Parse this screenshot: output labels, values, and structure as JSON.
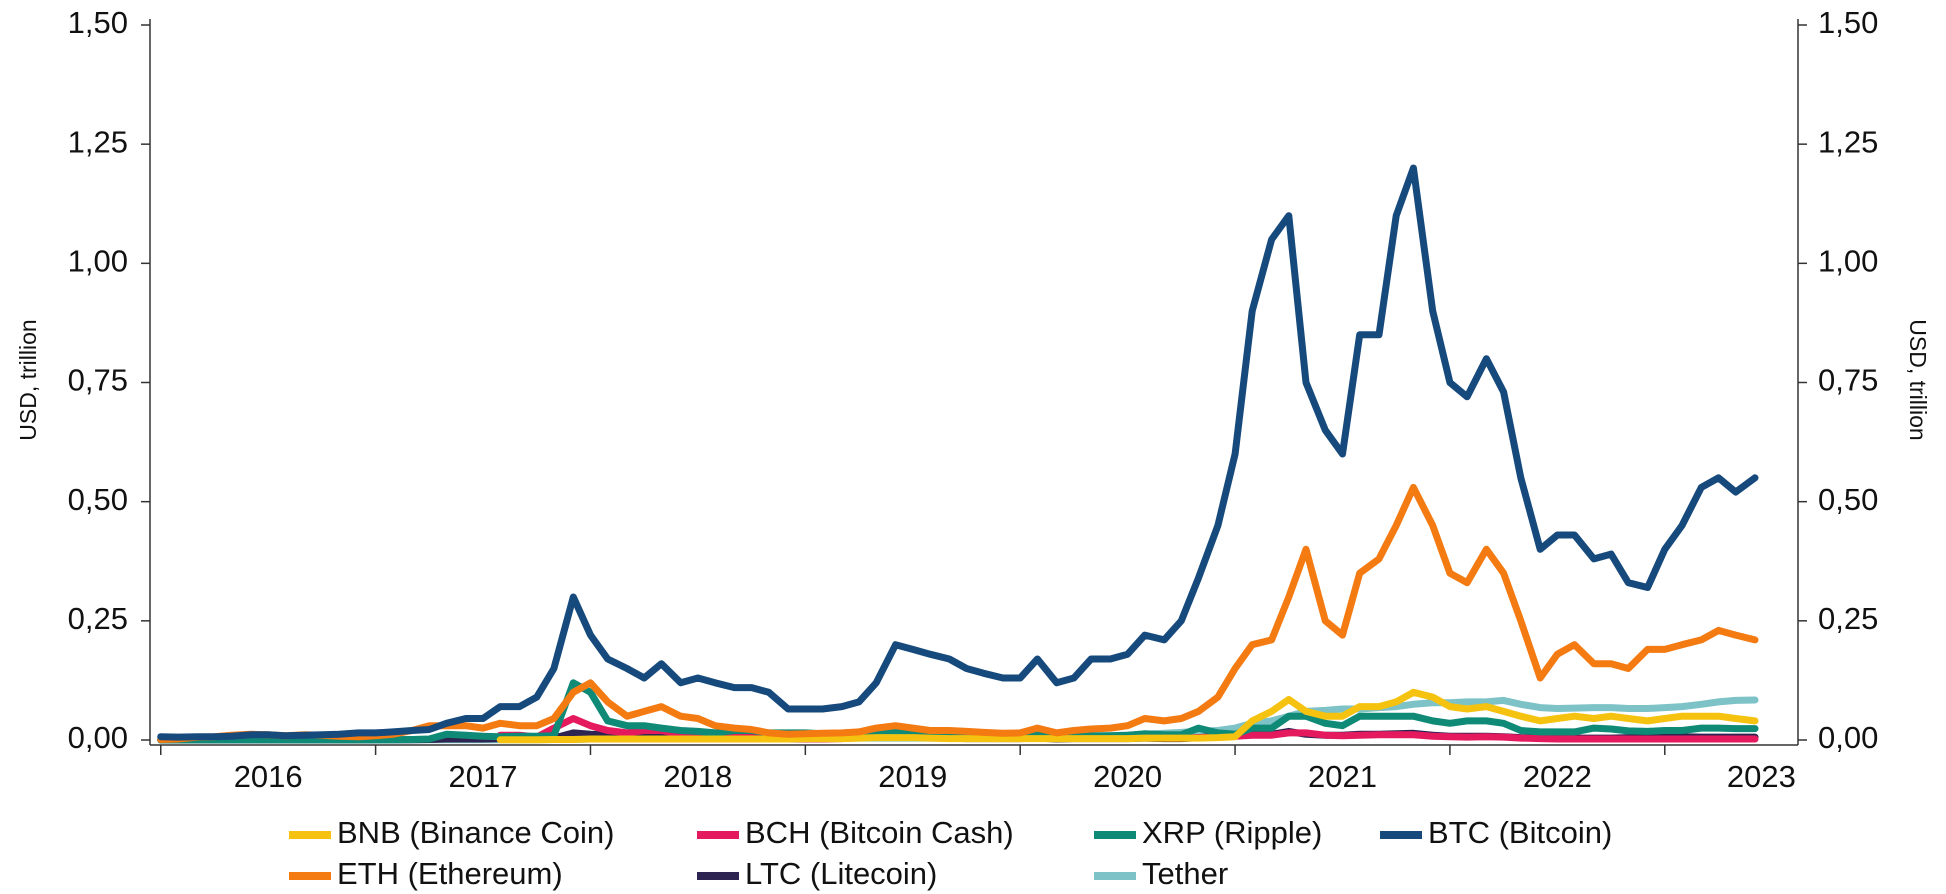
{
  "chart_data": {
    "type": "line",
    "ylabel": "USD, trillion",
    "y2label": "USD, trillion",
    "xlim": [
      2015.95,
      2023.62
    ],
    "xticks": [
      2016,
      2017,
      2018,
      2019,
      2020,
      2021,
      2022,
      2023
    ],
    "ylim": [
      0,
      1.5
    ],
    "yticks": [
      {
        "value": 0,
        "label": "0,00"
      },
      {
        "value": 0.25,
        "label": "0,25"
      },
      {
        "value": 0.5,
        "label": "0,50"
      },
      {
        "value": 0.75,
        "label": "0,75"
      },
      {
        "value": 1,
        "label": "1,00"
      },
      {
        "value": 1.25,
        "label": "1,25"
      },
      {
        "value": 1.5,
        "label": "1,50"
      }
    ],
    "y2lim": [
      0,
      1.5
    ],
    "y2ticks": [
      {
        "value": 0,
        "label": "0,00"
      },
      {
        "value": 0.25,
        "label": "0,25"
      },
      {
        "value": 0.5,
        "label": "0,50"
      },
      {
        "value": 0.75,
        "label": "0,75"
      },
      {
        "value": 1,
        "label": "1,00"
      },
      {
        "value": 1.25,
        "label": "1,25"
      },
      {
        "value": 1.5,
        "label": "1,50"
      }
    ],
    "grid": false,
    "legend": "bottom",
    "x": [
      2016,
      2016.08,
      2016.17,
      2016.25,
      2016.33,
      2016.42,
      2016.5,
      2016.58,
      2016.67,
      2016.75,
      2016.83,
      2016.92,
      2017,
      2017.08,
      2017.17,
      2017.25,
      2017.33,
      2017.42,
      2017.5,
      2017.58,
      2017.67,
      2017.75,
      2017.83,
      2017.92,
      2018,
      2018.08,
      2018.17,
      2018.25,
      2018.33,
      2018.42,
      2018.5,
      2018.58,
      2018.67,
      2018.75,
      2018.83,
      2018.92,
      2019,
      2019.08,
      2019.17,
      2019.25,
      2019.33,
      2019.42,
      2019.5,
      2019.58,
      2019.67,
      2019.75,
      2019.83,
      2019.92,
      2020,
      2020.08,
      2020.17,
      2020.25,
      2020.33,
      2020.42,
      2020.5,
      2020.58,
      2020.67,
      2020.75,
      2020.83,
      2020.92,
      2021,
      2021.08,
      2021.17,
      2021.25,
      2021.33,
      2021.42,
      2021.5,
      2021.58,
      2021.67,
      2021.75,
      2021.83,
      2021.92,
      2022,
      2022.08,
      2022.17,
      2022.25,
      2022.33,
      2022.42,
      2022.5,
      2022.58,
      2022.67,
      2022.75,
      2022.83,
      2022.92,
      2023,
      2023.08,
      2023.17,
      2023.25,
      2023.33,
      2023.42
    ],
    "series": [
      {
        "name": "BNB (Binance Coin)",
        "color": "#f5c20f",
        "values": [
          null,
          null,
          null,
          null,
          null,
          null,
          null,
          null,
          null,
          null,
          null,
          null,
          null,
          null,
          null,
          null,
          null,
          null,
          null,
          0.0005,
          0.0005,
          0.0005,
          0.001,
          0.001,
          0.002,
          0.002,
          0.002,
          0.002,
          0.002,
          0.002,
          0.002,
          0.002,
          0.002,
          0.002,
          0.002,
          0.002,
          0.003,
          0.003,
          0.003,
          0.004,
          0.005,
          0.005,
          0.005,
          0.004,
          0.003,
          0.003,
          0.003,
          0.003,
          0.003,
          0.003,
          0.003,
          0.003,
          0.003,
          0.003,
          0.003,
          0.004,
          0.004,
          0.004,
          0.004,
          0.005,
          0.007,
          0.04,
          0.06,
          0.085,
          0.06,
          0.05,
          0.05,
          0.07,
          0.07,
          0.08,
          0.1,
          0.09,
          0.07,
          0.065,
          0.07,
          0.06,
          0.05,
          0.04,
          0.045,
          0.05,
          0.045,
          0.05,
          0.045,
          0.04,
          0.045,
          0.05,
          0.05,
          0.05,
          0.045,
          0.04
        ]
      },
      {
        "name": "BCH (Bitcoin Cash)",
        "color": "#e5195e",
        "values": [
          null,
          null,
          null,
          null,
          null,
          null,
          null,
          null,
          null,
          null,
          null,
          null,
          null,
          null,
          null,
          null,
          null,
          null,
          null,
          0.01,
          0.01,
          0.006,
          0.025,
          0.045,
          0.03,
          0.02,
          0.015,
          0.02,
          0.02,
          0.012,
          0.012,
          0.01,
          0.01,
          0.008,
          0.005,
          0.003,
          0.002,
          0.002,
          0.003,
          0.005,
          0.007,
          0.008,
          0.006,
          0.005,
          0.004,
          0.004,
          0.004,
          0.004,
          0.006,
          0.007,
          0.004,
          0.004,
          0.004,
          0.004,
          0.005,
          0.005,
          0.004,
          0.004,
          0.005,
          0.006,
          0.008,
          0.01,
          0.01,
          0.015,
          0.015,
          0.01,
          0.009,
          0.01,
          0.011,
          0.011,
          0.011,
          0.008,
          0.007,
          0.006,
          0.007,
          0.006,
          0.004,
          0.003,
          0.002,
          0.002,
          0.002,
          0.002,
          0.002,
          0.002,
          0.002,
          0.002,
          0.002,
          0.002,
          0.002,
          0.002
        ]
      },
      {
        "name": "XRP (Ripple)",
        "color": "#0f8a76",
        "values": [
          0.0003,
          0.0003,
          0.0003,
          0.0003,
          0.0003,
          0.0003,
          0.0003,
          0.0003,
          0.0003,
          0.0003,
          0.0003,
          0.0003,
          0.0003,
          0.0003,
          0.001,
          0.002,
          0.012,
          0.01,
          0.008,
          0.007,
          0.008,
          0.008,
          0.009,
          0.12,
          0.1,
          0.04,
          0.03,
          0.03,
          0.025,
          0.02,
          0.018,
          0.015,
          0.02,
          0.02,
          0.015,
          0.015,
          0.015,
          0.013,
          0.013,
          0.013,
          0.018,
          0.017,
          0.014,
          0.011,
          0.011,
          0.012,
          0.01,
          0.009,
          0.01,
          0.012,
          0.008,
          0.009,
          0.009,
          0.009,
          0.01,
          0.013,
          0.011,
          0.011,
          0.025,
          0.015,
          0.012,
          0.025,
          0.025,
          0.05,
          0.05,
          0.035,
          0.03,
          0.05,
          0.05,
          0.05,
          0.05,
          0.04,
          0.035,
          0.04,
          0.04,
          0.035,
          0.02,
          0.017,
          0.017,
          0.017,
          0.025,
          0.023,
          0.019,
          0.018,
          0.02,
          0.02,
          0.025,
          0.025,
          0.024,
          0.024
        ]
      },
      {
        "name": "BTC (Bitcoin)",
        "color": "#174a7c",
        "values": [
          0.007,
          0.006,
          0.007,
          0.007,
          0.008,
          0.011,
          0.011,
          0.009,
          0.01,
          0.011,
          0.012,
          0.015,
          0.015,
          0.017,
          0.02,
          0.022,
          0.035,
          0.045,
          0.045,
          0.07,
          0.07,
          0.09,
          0.15,
          0.3,
          0.22,
          0.17,
          0.15,
          0.13,
          0.16,
          0.12,
          0.13,
          0.12,
          0.11,
          0.11,
          0.1,
          0.065,
          0.065,
          0.065,
          0.07,
          0.08,
          0.12,
          0.2,
          0.19,
          0.18,
          0.17,
          0.15,
          0.14,
          0.13,
          0.13,
          0.17,
          0.12,
          0.13,
          0.17,
          0.17,
          0.18,
          0.22,
          0.21,
          0.25,
          0.34,
          0.45,
          0.6,
          0.9,
          1.05,
          1.1,
          0.75,
          0.65,
          0.6,
          0.85,
          0.85,
          1.1,
          1.2,
          0.9,
          0.75,
          0.72,
          0.8,
          0.73,
          0.55,
          0.4,
          0.43,
          0.43,
          0.38,
          0.39,
          0.33,
          0.32,
          0.4,
          0.45,
          0.53,
          0.55,
          0.52,
          0.55
        ]
      },
      {
        "name": "ETH (Ethereum)",
        "color": "#f47a12",
        "values": [
          0.001,
          0.002,
          0.006,
          0.007,
          0.01,
          0.012,
          0.011,
          0.009,
          0.011,
          0.01,
          0.008,
          0.007,
          0.009,
          0.012,
          0.02,
          0.03,
          0.03,
          0.03,
          0.025,
          0.035,
          0.03,
          0.03,
          0.045,
          0.1,
          0.12,
          0.08,
          0.05,
          0.06,
          0.07,
          0.05,
          0.045,
          0.03,
          0.025,
          0.022,
          0.015,
          0.012,
          0.013,
          0.014,
          0.015,
          0.017,
          0.025,
          0.03,
          0.025,
          0.02,
          0.02,
          0.018,
          0.016,
          0.014,
          0.015,
          0.025,
          0.015,
          0.02,
          0.023,
          0.025,
          0.03,
          0.045,
          0.04,
          0.045,
          0.06,
          0.09,
          0.15,
          0.2,
          0.21,
          0.3,
          0.4,
          0.25,
          0.22,
          0.35,
          0.38,
          0.45,
          0.53,
          0.45,
          0.35,
          0.33,
          0.4,
          0.35,
          0.25,
          0.13,
          0.18,
          0.2,
          0.16,
          0.16,
          0.15,
          0.19,
          0.19,
          0.2,
          0.21,
          0.23,
          0.22,
          0.21
        ]
      },
      {
        "name": "LTC (Litecoin)",
        "color": "#2d2452",
        "values": [
          0.0002,
          0.0002,
          0.0002,
          0.0002,
          0.0002,
          0.0002,
          0.0002,
          0.0002,
          0.0002,
          0.0002,
          0.0002,
          0.0002,
          0.0005,
          0.0005,
          0.0005,
          0.001,
          0.002,
          0.002,
          0.002,
          0.003,
          0.003,
          0.003,
          0.004,
          0.015,
          0.012,
          0.011,
          0.008,
          0.008,
          0.007,
          0.005,
          0.005,
          0.004,
          0.003,
          0.003,
          0.002,
          0.002,
          0.002,
          0.003,
          0.004,
          0.005,
          0.006,
          0.008,
          0.006,
          0.005,
          0.004,
          0.003,
          0.003,
          0.003,
          0.003,
          0.004,
          0.002,
          0.003,
          0.003,
          0.003,
          0.003,
          0.004,
          0.003,
          0.003,
          0.005,
          0.008,
          0.01,
          0.012,
          0.012,
          0.018,
          0.012,
          0.01,
          0.01,
          0.012,
          0.012,
          0.013,
          0.014,
          0.01,
          0.008,
          0.008,
          0.008,
          0.007,
          0.005,
          0.004,
          0.004,
          0.004,
          0.004,
          0.004,
          0.005,
          0.005,
          0.006,
          0.007,
          0.006,
          0.006,
          0.006,
          0.006
        ]
      },
      {
        "name": "Tether",
        "color": "#7cc2c6",
        "values": [
          0.0003,
          0.0003,
          0.0003,
          0.0003,
          0.0003,
          0.0003,
          0.0003,
          0.0003,
          0.0003,
          0.0003,
          0.0003,
          0.0003,
          0.0005,
          0.0005,
          0.0005,
          0.0005,
          0.0005,
          0.0005,
          0.0005,
          0.0005,
          0.0005,
          0.0005,
          0.001,
          0.001,
          0.002,
          0.002,
          0.002,
          0.002,
          0.002,
          0.002,
          0.002,
          0.002,
          0.002,
          0.002,
          0.002,
          0.002,
          0.004,
          0.004,
          0.004,
          0.004,
          0.004,
          0.004,
          0.004,
          0.004,
          0.004,
          0.004,
          0.004,
          0.004,
          0.005,
          0.005,
          0.006,
          0.007,
          0.008,
          0.009,
          0.01,
          0.012,
          0.014,
          0.016,
          0.018,
          0.02,
          0.025,
          0.035,
          0.04,
          0.05,
          0.06,
          0.062,
          0.065,
          0.065,
          0.068,
          0.07,
          0.075,
          0.078,
          0.078,
          0.08,
          0.08,
          0.083,
          0.075,
          0.068,
          0.066,
          0.067,
          0.068,
          0.068,
          0.066,
          0.066,
          0.068,
          0.07,
          0.075,
          0.08,
          0.083,
          0.084
        ]
      }
    ]
  }
}
